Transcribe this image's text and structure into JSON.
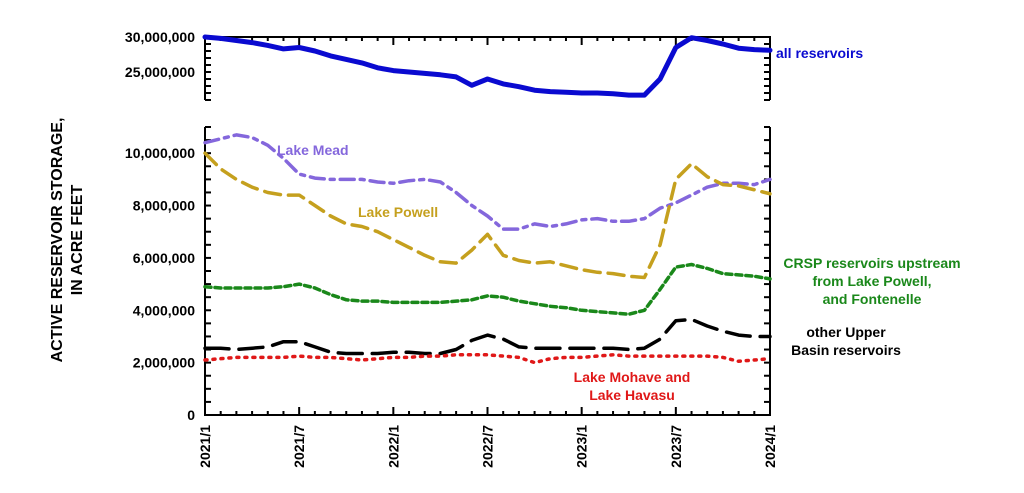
{
  "chart_data": [
    {
      "type": "line",
      "title": "",
      "ylabel": [
        "ACTIVE RESERVOIR STORAGE,",
        "IN ACRE FEET"
      ],
      "ylim": [
        21000000,
        30000000
      ],
      "yticks": [
        {
          "v": 30000000,
          "label": "30,000,000"
        },
        {
          "v": 25000000,
          "label": "25,000,000"
        }
      ],
      "x_months_from_2021_01": [
        0,
        1,
        2,
        3,
        4,
        5,
        6,
        7,
        8,
        9,
        10,
        11,
        12,
        13,
        14,
        15,
        16,
        17,
        18,
        19,
        20,
        21,
        22,
        23,
        24,
        25,
        26,
        27,
        28,
        29,
        30,
        31,
        32,
        33,
        34,
        35,
        36
      ],
      "series": [
        {
          "name": "all reservoirs",
          "color": "#0a0ad0",
          "style": "solid",
          "values": [
            30.0,
            29.8,
            29.5,
            29.2,
            28.8,
            28.3,
            28.5,
            28.0,
            27.3,
            26.8,
            26.3,
            25.6,
            25.2,
            25.0,
            24.8,
            24.6,
            24.3,
            23.1,
            24.0,
            23.3,
            22.9,
            22.4,
            22.2,
            22.1,
            22.0,
            22.0,
            21.9,
            21.7,
            21.7,
            24.0,
            28.5,
            29.9,
            29.5,
            29.0,
            28.4,
            28.2,
            28.1
          ]
        }
      ],
      "value_unit_multiplier": 1000000
    },
    {
      "type": "line",
      "ylim": [
        0,
        11000000
      ],
      "yticks": [
        {
          "v": 0,
          "label": "0"
        },
        {
          "v": 2000000,
          "label": "2,000,000"
        },
        {
          "v": 4000000,
          "label": "4,000,000"
        },
        {
          "v": 6000000,
          "label": "6,000,000"
        },
        {
          "v": 8000000,
          "label": "8,000,000"
        },
        {
          "v": 10000000,
          "label": "10,000,000"
        }
      ],
      "xticks": [
        {
          "m": 0,
          "label": "2021/1"
        },
        {
          "m": 6,
          "label": "2021/7"
        },
        {
          "m": 12,
          "label": "2022/1"
        },
        {
          "m": 18,
          "label": "2022/7"
        },
        {
          "m": 24,
          "label": "2023/1"
        },
        {
          "m": 30,
          "label": "2023/7"
        },
        {
          "m": 36,
          "label": "2024/1"
        }
      ],
      "value_unit_multiplier": 1000000,
      "series": [
        {
          "name": "Lake Mead",
          "label_lines": [
            "Lake Mead"
          ],
          "color": "#8467dc",
          "style": "dashdot",
          "values": [
            10.4,
            10.55,
            10.7,
            10.6,
            10.3,
            9.8,
            9.2,
            9.05,
            9.0,
            9.0,
            9.0,
            8.9,
            8.85,
            8.95,
            9.0,
            8.9,
            8.5,
            8.0,
            7.6,
            7.1,
            7.1,
            7.3,
            7.2,
            7.3,
            7.45,
            7.5,
            7.4,
            7.4,
            7.5,
            7.9,
            8.1,
            8.4,
            8.7,
            8.85,
            8.85,
            8.8,
            9.0
          ]
        },
        {
          "name": "Lake Powell",
          "label_lines": [
            "Lake Powell"
          ],
          "color": "#c5a01e",
          "style": "dash",
          "values": [
            10.0,
            9.4,
            9.0,
            8.7,
            8.5,
            8.4,
            8.4,
            8.0,
            7.6,
            7.3,
            7.2,
            7.0,
            6.7,
            6.4,
            6.1,
            5.85,
            5.8,
            6.3,
            6.9,
            6.1,
            5.9,
            5.8,
            5.85,
            5.7,
            5.55,
            5.45,
            5.4,
            5.3,
            5.25,
            6.5,
            9.0,
            9.6,
            9.1,
            8.8,
            8.75,
            8.6,
            8.45
          ]
        },
        {
          "name": "CRSP reservoirs upstream from Lake Powell, and Fontenelle",
          "label_lines": [
            "CRSP reservoirs upstream",
            "from Lake Powell,",
            "and Fontenelle"
          ],
          "color": "#1a881a",
          "style": "shortdash",
          "values": [
            4.9,
            4.85,
            4.85,
            4.85,
            4.85,
            4.9,
            5.0,
            4.85,
            4.6,
            4.4,
            4.35,
            4.35,
            4.3,
            4.3,
            4.3,
            4.3,
            4.35,
            4.4,
            4.55,
            4.5,
            4.35,
            4.25,
            4.15,
            4.1,
            4.0,
            3.95,
            3.9,
            3.85,
            4.0,
            4.8,
            5.65,
            5.75,
            5.6,
            5.4,
            5.35,
            5.3,
            5.2
          ]
        },
        {
          "name": "other Upper Basin reservoirs",
          "label_lines": [
            "other Upper",
            "Basin reservoirs"
          ],
          "color": "#000000",
          "style": "longdash",
          "values": [
            2.55,
            2.55,
            2.5,
            2.55,
            2.6,
            2.8,
            2.8,
            2.6,
            2.4,
            2.35,
            2.35,
            2.35,
            2.4,
            2.4,
            2.35,
            2.35,
            2.5,
            2.85,
            3.05,
            2.9,
            2.6,
            2.55,
            2.55,
            2.55,
            2.55,
            2.55,
            2.55,
            2.5,
            2.55,
            2.9,
            3.6,
            3.65,
            3.4,
            3.2,
            3.05,
            3.0,
            3.0
          ]
        },
        {
          "name": "Lake Mohave and Lake Havasu",
          "label_lines": [
            "Lake Mohave and",
            "Lake Havasu"
          ],
          "color": "#e01818",
          "style": "dot",
          "values": [
            2.1,
            2.15,
            2.2,
            2.2,
            2.2,
            2.2,
            2.25,
            2.2,
            2.2,
            2.15,
            2.1,
            2.15,
            2.2,
            2.2,
            2.25,
            2.25,
            2.3,
            2.3,
            2.3,
            2.25,
            2.2,
            2.0,
            2.15,
            2.2,
            2.2,
            2.25,
            2.3,
            2.25,
            2.25,
            2.25,
            2.25,
            2.25,
            2.25,
            2.2,
            2.05,
            2.1,
            2.15
          ]
        }
      ]
    }
  ]
}
